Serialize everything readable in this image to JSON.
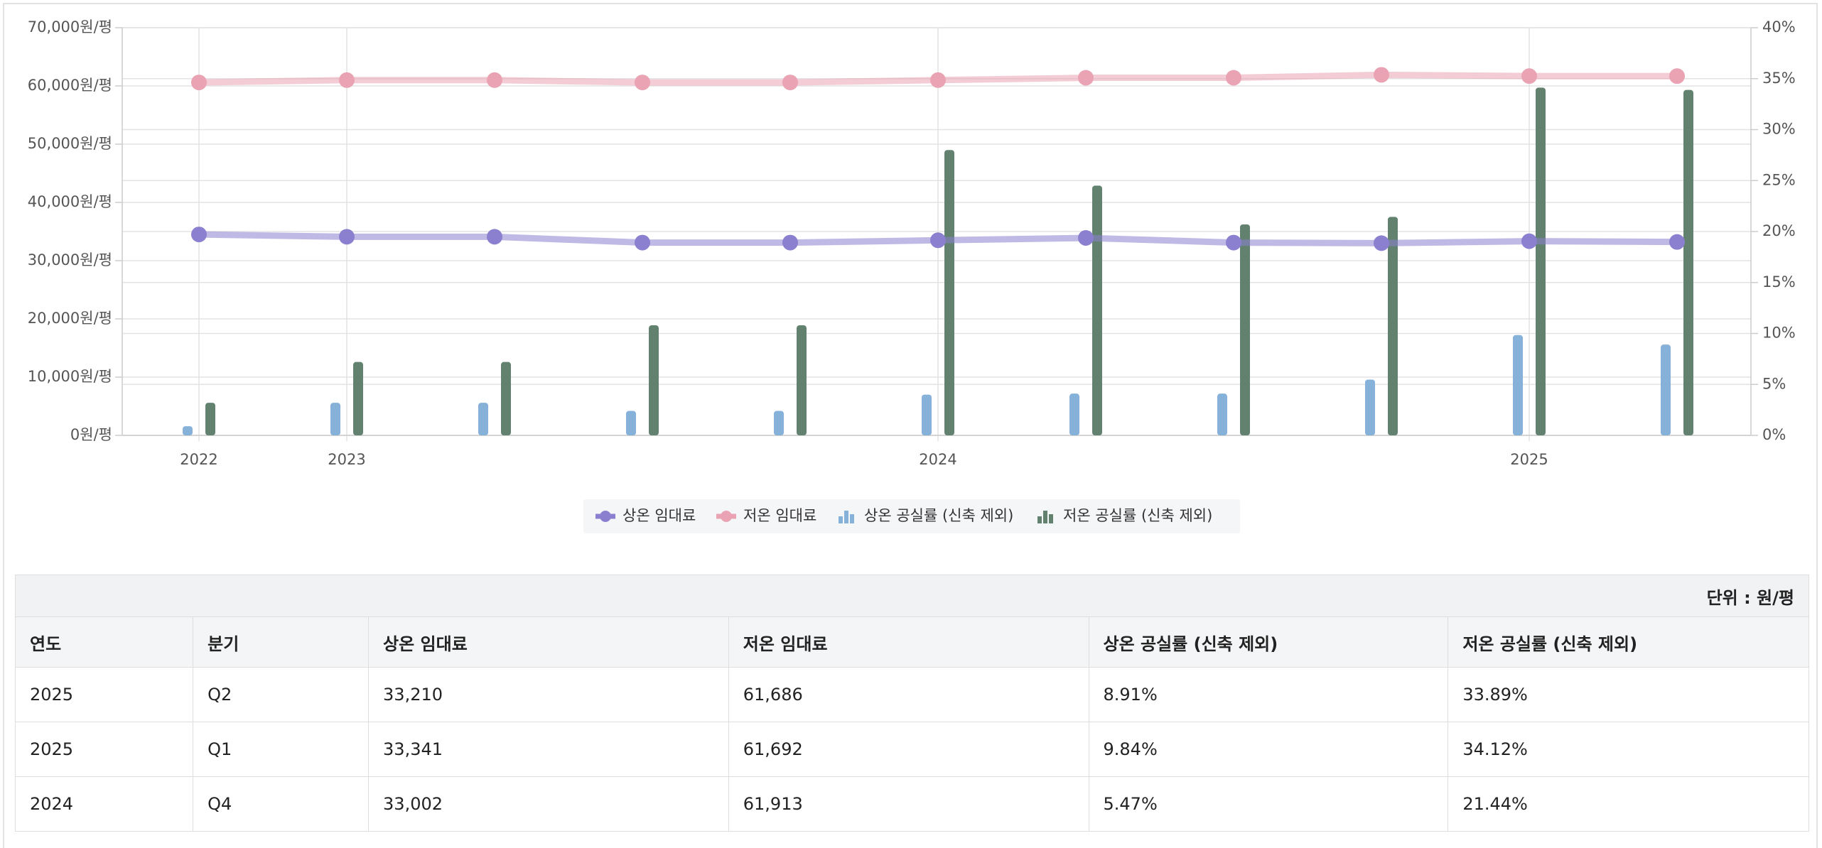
{
  "chart_data": {
    "type": "line",
    "categories": [
      "2022",
      "2023",
      null,
      null,
      null,
      "2024",
      null,
      null,
      null,
      "2025",
      null
    ],
    "series": [
      {
        "name": "상온 임대료",
        "type": "line",
        "color": "#8a80cf",
        "values": [
          34500,
          34100,
          34100,
          33100,
          33100,
          33500,
          33900,
          33100,
          33002,
          33341,
          33210
        ]
      },
      {
        "name": "저온 임대료",
        "type": "line",
        "color": "#eaa3b3",
        "values": [
          60600,
          61000,
          61000,
          60600,
          60600,
          61000,
          61400,
          61400,
          61913,
          61692,
          61686
        ]
      },
      {
        "name": "상온 공실률 (신축 제외)",
        "type": "bar",
        "axis": "y2",
        "color": "#86b1d9",
        "values": [
          0.9,
          3.2,
          3.2,
          2.4,
          2.4,
          4.0,
          4.1,
          4.1,
          5.47,
          9.84,
          8.91
        ]
      },
      {
        "name": "저온 공실률 (신축 제외)",
        "type": "bar",
        "axis": "y2",
        "color": "#62826f",
        "values": [
          3.2,
          7.2,
          7.2,
          10.8,
          10.8,
          28.0,
          24.5,
          20.7,
          21.44,
          34.12,
          33.89
        ]
      }
    ],
    "ylim": [
      0,
      70000
    ],
    "yticks": [
      {
        "value": 0,
        "label": "0원/평"
      },
      {
        "value": 10000,
        "label": "10,000원/평"
      },
      {
        "value": 20000,
        "label": "20,000원/평"
      },
      {
        "value": 30000,
        "label": "30,000원/평"
      },
      {
        "value": 40000,
        "label": "40,000원/평"
      },
      {
        "value": 50000,
        "label": "50,000원/평"
      },
      {
        "value": 60000,
        "label": "60,000원/평"
      },
      {
        "value": 70000,
        "label": "70,000원/평"
      }
    ],
    "y2lim": [
      0,
      40
    ],
    "y2ticks": [
      {
        "value": 0,
        "label": "0%"
      },
      {
        "value": 5,
        "label": "5%"
      },
      {
        "value": 10,
        "label": "10%"
      },
      {
        "value": 15,
        "label": "15%"
      },
      {
        "value": 20,
        "label": "20%"
      },
      {
        "value": 25,
        "label": "25%"
      },
      {
        "value": 30,
        "label": "30%"
      },
      {
        "value": 35,
        "label": "35%"
      },
      {
        "value": 40,
        "label": "40%"
      }
    ],
    "grid": true,
    "legend": "bottom"
  },
  "table": {
    "unit": "단위 : 원/평",
    "columns": [
      "연도",
      "분기",
      "상온 임대료",
      "저온 임대료",
      "상온 공실률 (신축 제외)",
      "저온 공실률 (신축 제외)"
    ],
    "rows": [
      [
        "2025",
        "Q2",
        "33,210",
        "61,686",
        "8.91%",
        "33.89%"
      ],
      [
        "2025",
        "Q1",
        "33,341",
        "61,692",
        "9.84%",
        "34.12%"
      ],
      [
        "2024",
        "Q4",
        "33,002",
        "61,913",
        "5.47%",
        "21.44%"
      ]
    ]
  }
}
